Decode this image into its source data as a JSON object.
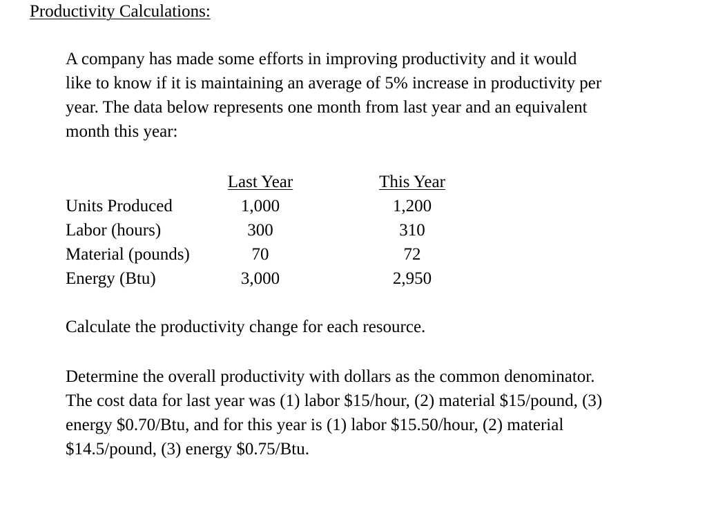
{
  "title": "Productivity Calculations:",
  "intro_lines": [
    "A company has made some efforts in improving productivity and it would",
    "like to know if it is maintaining an average of 5% increase in productivity per",
    "year.  The data below represents one month from last year and an equivalent",
    "month this year:"
  ],
  "table": {
    "headers": [
      "Last Year",
      "This Year"
    ],
    "rows": [
      {
        "label": "Units Produced",
        "last": "1,000",
        "this": "1,200"
      },
      {
        "label": "Labor (hours)",
        "last": "300",
        "this": "310"
      },
      {
        "label": "Material (pounds)",
        "last": "70",
        "this": "72"
      },
      {
        "label": "Energy (Btu)",
        "last": "3,000",
        "this": "2,950"
      }
    ]
  },
  "task1": "Calculate the productivity change for each resource.",
  "task2_lines": [
    "Determine the overall productivity with dollars as the common denominator.",
    "The cost data for last year was (1) labor $15/hour, (2) material $15/pound, (3)",
    "energy $0.70/Btu, and for this year is (1) labor $15.50/hour, (2) material",
    "$14.5/pound, (3) energy $0.75/Btu."
  ]
}
